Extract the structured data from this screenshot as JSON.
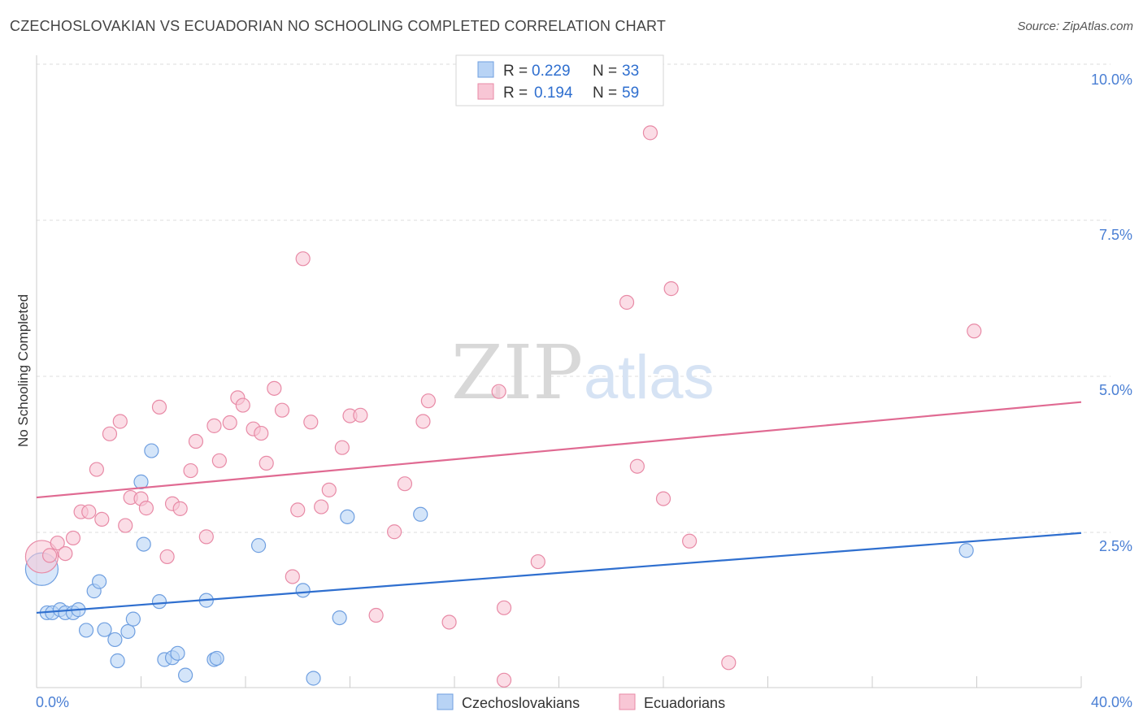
{
  "header": {
    "title": "CZECHOSLOVAKIAN VS ECUADORIAN NO SCHOOLING COMPLETED CORRELATION CHART",
    "source": "Source: ZipAtlas.com"
  },
  "watermark": {
    "part1": "ZIP",
    "part2": "atlas"
  },
  "colors": {
    "blue_fill": "#b8d3f5",
    "blue_stroke": "#6f9fe0",
    "blue_line": "#2f6fcf",
    "pink_fill": "#f8c6d5",
    "pink_stroke": "#e88aa6",
    "pink_line": "#e06a92",
    "tick": "#4a7fd4",
    "grid": "#dddddd"
  },
  "chart_data": {
    "type": "scatter",
    "title": "CZECHOSLOVAKIAN VS ECUADORIAN NO SCHOOLING COMPLETED CORRELATION CHART",
    "xlabel": "",
    "ylabel": "No Schooling Completed",
    "xlim": [
      0,
      40
    ],
    "ylim": [
      0,
      10.0
    ],
    "x_tick_labels": [
      "0.0%",
      "40.0%"
    ],
    "y_ticks": [
      2.5,
      5.0,
      7.5,
      10.0
    ],
    "y_tick_labels": [
      "2.5%",
      "5.0%",
      "7.5%",
      "10.0%"
    ],
    "grid": true,
    "legend_position": "bottom-center",
    "stats_box": [
      {
        "series": "Czechoslovakians",
        "r_label": "R =",
        "r_value": "0.229",
        "n_label": "N =",
        "n_value": "33"
      },
      {
        "series": "Ecuadorians",
        "r_label": "R =",
        "r_value": "0.194",
        "n_label": "N =",
        "n_value": "59"
      }
    ],
    "series": [
      {
        "name": "Czechoslovakians",
        "color": "blue",
        "trend": {
          "x": [
            0,
            40
          ],
          "y": [
            1.2,
            2.48
          ]
        },
        "points": [
          {
            "x": 0.2,
            "y": 1.9,
            "big": true
          },
          {
            "x": 0.4,
            "y": 1.2
          },
          {
            "x": 0.6,
            "y": 1.2
          },
          {
            "x": 0.9,
            "y": 1.25
          },
          {
            "x": 1.1,
            "y": 1.2
          },
          {
            "x": 1.4,
            "y": 1.2
          },
          {
            "x": 1.6,
            "y": 1.25
          },
          {
            "x": 1.9,
            "y": 0.92
          },
          {
            "x": 2.2,
            "y": 1.55
          },
          {
            "x": 2.4,
            "y": 1.7
          },
          {
            "x": 2.6,
            "y": 0.93
          },
          {
            "x": 3.0,
            "y": 0.77
          },
          {
            "x": 3.1,
            "y": 0.43
          },
          {
            "x": 3.5,
            "y": 0.9
          },
          {
            "x": 3.7,
            "y": 1.1
          },
          {
            "x": 4.0,
            "y": 3.3
          },
          {
            "x": 4.1,
            "y": 2.3
          },
          {
            "x": 4.4,
            "y": 3.8
          },
          {
            "x": 4.7,
            "y": 1.38
          },
          {
            "x": 4.9,
            "y": 0.45
          },
          {
            "x": 5.2,
            "y": 0.48
          },
          {
            "x": 5.4,
            "y": 0.55
          },
          {
            "x": 5.7,
            "y": 0.2
          },
          {
            "x": 6.5,
            "y": 1.4
          },
          {
            "x": 6.8,
            "y": 0.45
          },
          {
            "x": 6.9,
            "y": 0.47
          },
          {
            "x": 8.5,
            "y": 2.28
          },
          {
            "x": 10.2,
            "y": 1.56
          },
          {
            "x": 10.6,
            "y": 0.15
          },
          {
            "x": 11.6,
            "y": 1.12
          },
          {
            "x": 11.9,
            "y": 2.74
          },
          {
            "x": 14.7,
            "y": 2.78
          },
          {
            "x": 35.6,
            "y": 2.2
          }
        ]
      },
      {
        "name": "Ecuadorians",
        "color": "pink",
        "trend": {
          "x": [
            0,
            40
          ],
          "y": [
            3.05,
            4.58
          ]
        },
        "points": [
          {
            "x": 0.2,
            "y": 2.1,
            "big": true
          },
          {
            "x": 0.5,
            "y": 2.12
          },
          {
            "x": 0.8,
            "y": 2.32
          },
          {
            "x": 1.1,
            "y": 2.15
          },
          {
            "x": 1.4,
            "y": 2.4
          },
          {
            "x": 1.7,
            "y": 2.82
          },
          {
            "x": 2.0,
            "y": 2.82
          },
          {
            "x": 2.3,
            "y": 3.5
          },
          {
            "x": 2.5,
            "y": 2.7
          },
          {
            "x": 2.8,
            "y": 4.07
          },
          {
            "x": 3.2,
            "y": 4.27
          },
          {
            "x": 3.4,
            "y": 2.6
          },
          {
            "x": 3.6,
            "y": 3.05
          },
          {
            "x": 4.0,
            "y": 3.03
          },
          {
            "x": 4.2,
            "y": 2.88
          },
          {
            "x": 4.7,
            "y": 4.5
          },
          {
            "x": 5.0,
            "y": 2.1
          },
          {
            "x": 5.2,
            "y": 2.95
          },
          {
            "x": 5.5,
            "y": 2.87
          },
          {
            "x": 5.9,
            "y": 3.48
          },
          {
            "x": 6.1,
            "y": 3.95
          },
          {
            "x": 6.5,
            "y": 2.42
          },
          {
            "x": 6.8,
            "y": 4.2
          },
          {
            "x": 7.0,
            "y": 3.64
          },
          {
            "x": 7.4,
            "y": 4.25
          },
          {
            "x": 7.7,
            "y": 4.65
          },
          {
            "x": 7.9,
            "y": 4.53
          },
          {
            "x": 8.3,
            "y": 4.15
          },
          {
            "x": 8.6,
            "y": 4.08
          },
          {
            "x": 8.8,
            "y": 3.6
          },
          {
            "x": 9.1,
            "y": 4.8
          },
          {
            "x": 9.4,
            "y": 4.45
          },
          {
            "x": 9.8,
            "y": 1.78
          },
          {
            "x": 10.0,
            "y": 2.85
          },
          {
            "x": 10.2,
            "y": 6.88
          },
          {
            "x": 10.5,
            "y": 4.26
          },
          {
            "x": 10.9,
            "y": 2.9
          },
          {
            "x": 11.2,
            "y": 3.17
          },
          {
            "x": 11.7,
            "y": 3.85
          },
          {
            "x": 12.0,
            "y": 4.36
          },
          {
            "x": 12.4,
            "y": 4.37
          },
          {
            "x": 13.0,
            "y": 1.16
          },
          {
            "x": 13.7,
            "y": 2.5
          },
          {
            "x": 14.1,
            "y": 3.27
          },
          {
            "x": 14.8,
            "y": 4.27
          },
          {
            "x": 15.0,
            "y": 4.6
          },
          {
            "x": 15.8,
            "y": 1.05
          },
          {
            "x": 17.7,
            "y": 4.75
          },
          {
            "x": 17.9,
            "y": 1.28
          },
          {
            "x": 17.9,
            "y": 0.12
          },
          {
            "x": 19.2,
            "y": 2.02
          },
          {
            "x": 22.6,
            "y": 6.18
          },
          {
            "x": 23.0,
            "y": 3.55
          },
          {
            "x": 23.5,
            "y": 8.9
          },
          {
            "x": 24.0,
            "y": 3.03
          },
          {
            "x": 24.3,
            "y": 6.4
          },
          {
            "x": 25.0,
            "y": 2.35
          },
          {
            "x": 26.5,
            "y": 0.4
          },
          {
            "x": 35.9,
            "y": 5.72
          }
        ]
      }
    ]
  }
}
